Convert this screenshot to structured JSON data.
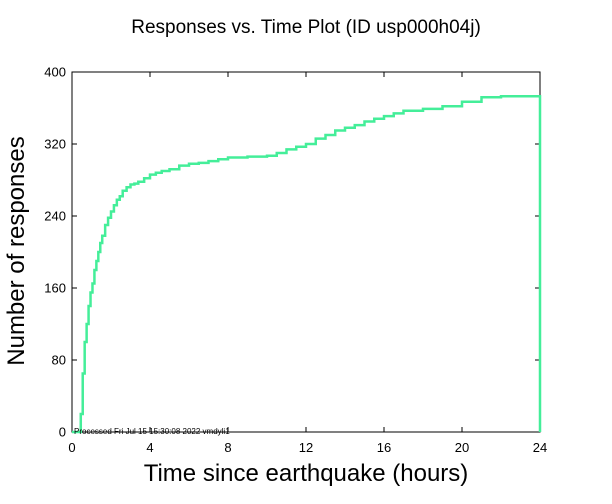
{
  "chart_data": {
    "type": "line",
    "title": "Responses vs. Time Plot (ID usp000h04j)",
    "xlabel": "Time since earthquake (hours)",
    "ylabel": "Number of responses",
    "xlim": [
      0,
      24
    ],
    "ylim": [
      0,
      400
    ],
    "xticks": [
      0,
      4,
      8,
      12,
      16,
      20,
      24
    ],
    "yticks": [
      0,
      80,
      160,
      240,
      320,
      400
    ],
    "grid": false,
    "line_style": "step",
    "footnote": "Processed Fri Jul 15 15:30:08 2022 vmdyli1",
    "series": [
      {
        "x": [
          0,
          0.45,
          0.55,
          0.65,
          0.75,
          0.85,
          0.95,
          1.05,
          1.15,
          1.25,
          1.35,
          1.45,
          1.55,
          1.7,
          1.85,
          2.0,
          2.15,
          2.3,
          2.45,
          2.6,
          2.8,
          3.0,
          3.2,
          3.4,
          3.7,
          4.0,
          4.3,
          4.6,
          5.0,
          5.5,
          6.0,
          6.5,
          7.0,
          7.5,
          8.0,
          9.0,
          10.0,
          10.5,
          11.0,
          11.5,
          12.0,
          12.5,
          13.0,
          13.5,
          14.0,
          14.5,
          15.0,
          15.5,
          16.0,
          16.5,
          17.0,
          18.0,
          19.0,
          20.0,
          21.0,
          22.0,
          23.0,
          24.0
        ],
        "y": [
          0,
          20,
          65,
          100,
          120,
          140,
          155,
          165,
          180,
          190,
          200,
          210,
          218,
          230,
          238,
          245,
          252,
          258,
          262,
          268,
          272,
          275,
          276,
          278,
          282,
          286,
          288,
          290,
          292,
          296,
          298,
          299,
          301,
          303,
          305,
          306,
          307,
          310,
          314,
          317,
          320,
          326,
          330,
          335,
          338,
          341,
          345,
          348,
          351,
          354,
          357,
          359,
          362,
          367,
          372,
          373,
          373,
          0
        ],
        "color": "#44ee99"
      }
    ]
  }
}
